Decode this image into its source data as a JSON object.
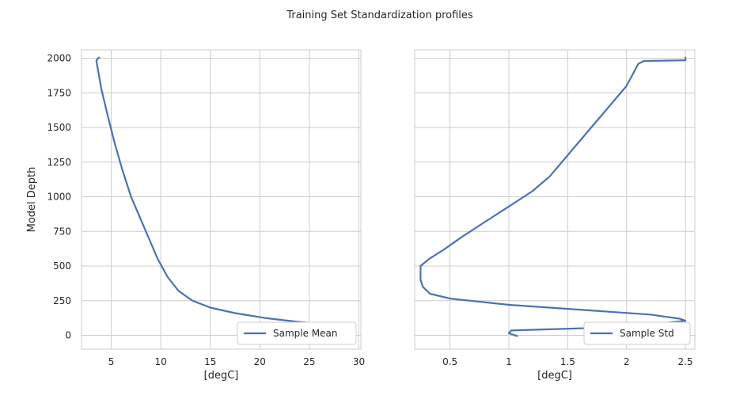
{
  "figure": {
    "title": "Training Set Standardization profiles"
  },
  "chart_data": [
    {
      "type": "line",
      "xlabel": "[degC]",
      "ylabel": "Model Depth",
      "xlim": [
        2,
        30.2
      ],
      "ylim": [
        -100,
        2060
      ],
      "xticks": [
        5,
        10,
        15,
        20,
        25,
        30
      ],
      "yticks": [
        0,
        250,
        500,
        750,
        1000,
        1250,
        1500,
        1750,
        2000
      ],
      "grid": true,
      "legend": "lower-right",
      "series": [
        {
          "name": "Sample Mean",
          "color": "#4c72b0",
          "points": [
            [
              3.8,
              2005
            ],
            [
              3.6,
              1995
            ],
            [
              3.5,
              1980
            ],
            [
              3.7,
              1900
            ],
            [
              4.0,
              1780
            ],
            [
              4.6,
              1600
            ],
            [
              5.3,
              1400
            ],
            [
              6.1,
              1200
            ],
            [
              7.0,
              1000
            ],
            [
              7.9,
              850
            ],
            [
              8.8,
              700
            ],
            [
              9.7,
              550
            ],
            [
              10.7,
              420
            ],
            [
              11.8,
              320
            ],
            [
              13.2,
              250
            ],
            [
              15.0,
              200
            ],
            [
              17.5,
              160
            ],
            [
              20.5,
              125
            ],
            [
              23.5,
              100
            ],
            [
              25.0,
              90
            ]
          ]
        }
      ]
    },
    {
      "type": "line",
      "xlabel": "[degC]",
      "ylabel": "",
      "xlim": [
        0.2,
        2.58
      ],
      "ylim": [
        -100,
        2060
      ],
      "xticks": [
        0.5,
        1.0,
        1.5,
        2.0,
        2.5
      ],
      "yticks": [
        0,
        250,
        500,
        750,
        1000,
        1250,
        1500,
        1750,
        2000
      ],
      "grid": true,
      "legend": "lower-right",
      "series": [
        {
          "name": "Sample Std",
          "color": "#4c72b0",
          "points": [
            [
              2.5,
              2005
            ],
            [
              2.5,
              1985
            ],
            [
              2.15,
              1980
            ],
            [
              2.1,
              1960
            ],
            [
              2.0,
              1800
            ],
            [
              1.8,
              1600
            ],
            [
              1.6,
              1400
            ],
            [
              1.45,
              1250
            ],
            [
              1.35,
              1150
            ],
            [
              1.2,
              1040
            ],
            [
              1.0,
              930
            ],
            [
              0.8,
              820
            ],
            [
              0.6,
              710
            ],
            [
              0.45,
              620
            ],
            [
              0.32,
              550
            ],
            [
              0.25,
              500
            ],
            [
              0.25,
              400
            ],
            [
              0.27,
              350
            ],
            [
              0.33,
              300
            ],
            [
              0.5,
              265
            ],
            [
              1.0,
              220
            ],
            [
              1.6,
              185
            ],
            [
              2.2,
              150
            ],
            [
              2.45,
              120
            ],
            [
              2.5,
              105
            ],
            [
              2.0,
              60
            ],
            [
              1.4,
              45
            ],
            [
              1.02,
              35
            ],
            [
              1.0,
              15
            ],
            [
              1.07,
              -5
            ]
          ]
        }
      ]
    }
  ]
}
